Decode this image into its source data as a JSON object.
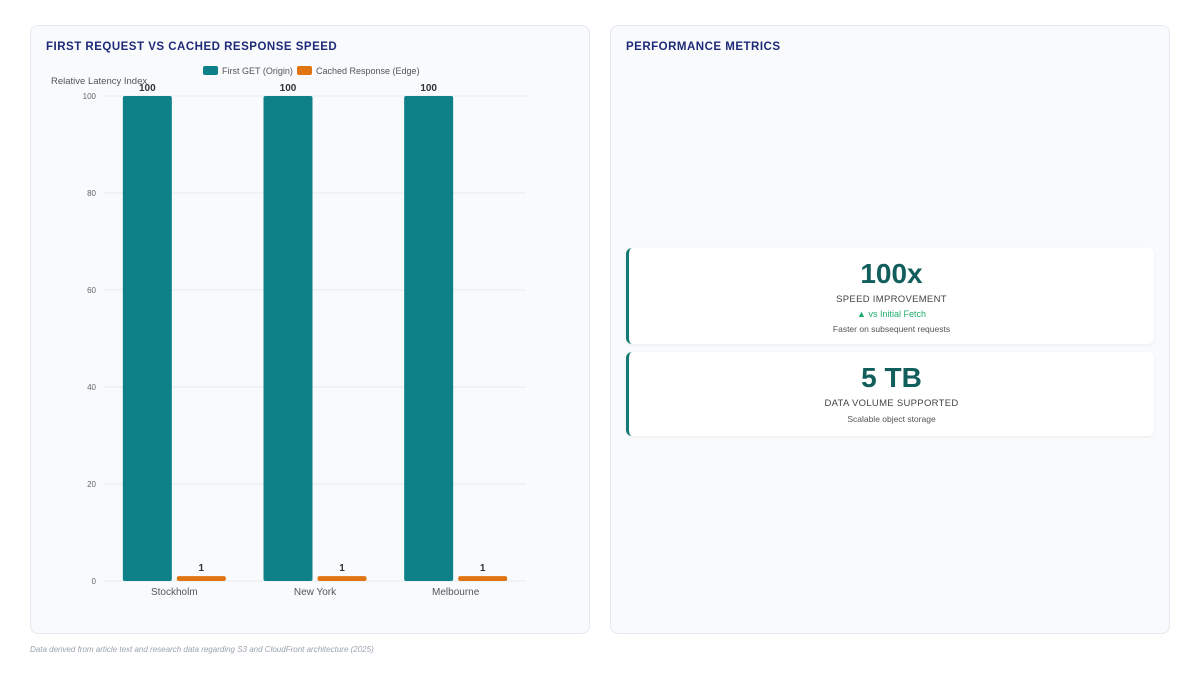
{
  "left_panel": {
    "title": "FIRST REQUEST VS CACHED RESPONSE SPEED"
  },
  "right_panel": {
    "title": "PERFORMANCE METRICS"
  },
  "chart_data": {
    "type": "bar",
    "title": "FIRST REQUEST VS CACHED RESPONSE SPEED",
    "xlabel": "",
    "ylabel": "Relative Latency Index",
    "categories": [
      "Stockholm",
      "New York",
      "Melbourne"
    ],
    "series": [
      {
        "name": "First GET (Origin)",
        "values": [
          100,
          100,
          100
        ],
        "color": "#0e8088"
      },
      {
        "name": "Cached Response (Edge)",
        "values": [
          1,
          1,
          1
        ],
        "color": "#e07410"
      }
    ],
    "ylim": [
      0,
      100
    ],
    "yticks": [
      0,
      20,
      40,
      60,
      80,
      100
    ],
    "grid": true,
    "legend": "top-center",
    "data_labels": true
  },
  "metrics": [
    {
      "value": "100x",
      "label": "SPEED IMPROVEMENT",
      "trend": "▲ vs Initial Fetch",
      "sub": "Faster on subsequent requests"
    },
    {
      "value": "5 TB",
      "label": "DATA VOLUME SUPPORTED",
      "sub": "Scalable object storage"
    }
  ],
  "footnote": "Data derived from article text and research data regarding S3 and CloudFront architecture (2025)"
}
